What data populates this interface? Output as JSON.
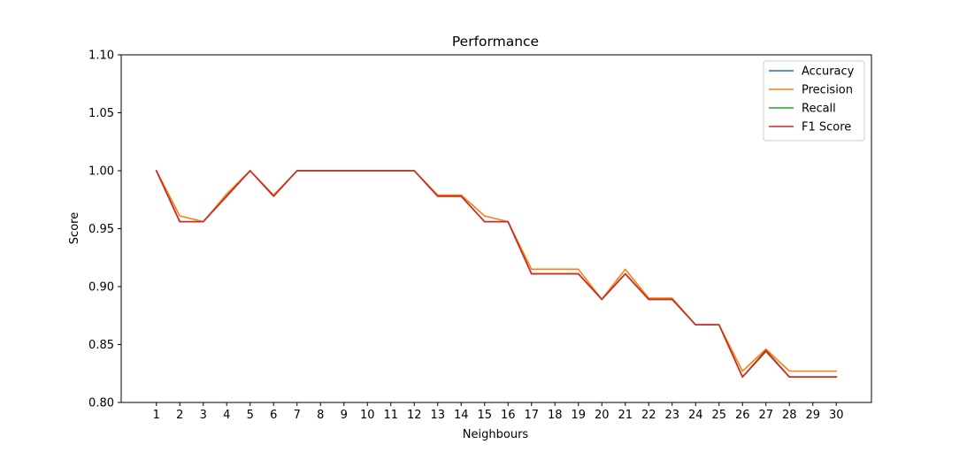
{
  "chart_data": {
    "type": "line",
    "title": "Performance",
    "xlabel": "Neighbours",
    "ylabel": "Score",
    "x": [
      1,
      2,
      3,
      4,
      5,
      6,
      7,
      8,
      9,
      10,
      11,
      12,
      13,
      14,
      15,
      16,
      17,
      18,
      19,
      20,
      21,
      22,
      23,
      24,
      25,
      26,
      27,
      28,
      29,
      30
    ],
    "x_tick_labels": [
      "1",
      "2",
      "3",
      "4",
      "5",
      "6",
      "7",
      "8",
      "9",
      "10",
      "11",
      "12",
      "13",
      "14",
      "15",
      "16",
      "17",
      "18",
      "19",
      "20",
      "21",
      "22",
      "23",
      "24",
      "25",
      "26",
      "27",
      "28",
      "29",
      "30"
    ],
    "xlim": [
      -0.5,
      31.5
    ],
    "ylim": [
      0.8,
      1.1
    ],
    "y_ticks": [
      0.8,
      0.85,
      0.9,
      0.95,
      1.0,
      1.05,
      1.1
    ],
    "y_tick_labels": [
      "0.80",
      "0.85",
      "0.90",
      "0.95",
      "1.00",
      "1.05",
      "1.10"
    ],
    "grid": false,
    "legend_position": "top-right",
    "series": [
      {
        "name": "Accuracy",
        "color": "#1f77b4",
        "values": [
          1.0,
          0.956,
          0.956,
          0.978,
          1.0,
          0.978,
          1.0,
          1.0,
          1.0,
          1.0,
          1.0,
          1.0,
          0.978,
          0.978,
          0.956,
          0.956,
          0.911,
          0.911,
          0.911,
          0.889,
          0.911,
          0.889,
          0.889,
          0.867,
          0.867,
          0.822,
          0.844,
          0.822,
          0.822,
          0.822
        ]
      },
      {
        "name": "Precision",
        "color": "#ff7f0e",
        "values": [
          1.0,
          0.961,
          0.956,
          0.98,
          1.0,
          0.979,
          1.0,
          1.0,
          1.0,
          1.0,
          1.0,
          1.0,
          0.979,
          0.979,
          0.961,
          0.956,
          0.915,
          0.915,
          0.915,
          0.889,
          0.915,
          0.89,
          0.89,
          0.867,
          0.867,
          0.827,
          0.846,
          0.827,
          0.827,
          0.827
        ]
      },
      {
        "name": "Recall",
        "color": "#2ca02c",
        "values": [
          1.0,
          0.956,
          0.956,
          0.978,
          1.0,
          0.978,
          1.0,
          1.0,
          1.0,
          1.0,
          1.0,
          1.0,
          0.978,
          0.978,
          0.956,
          0.956,
          0.911,
          0.911,
          0.911,
          0.889,
          0.911,
          0.889,
          0.889,
          0.867,
          0.867,
          0.822,
          0.844,
          0.822,
          0.822,
          0.822
        ]
      },
      {
        "name": "F1 Score",
        "color": "#d62728",
        "values": [
          1.0,
          0.956,
          0.956,
          0.978,
          1.0,
          0.978,
          1.0,
          1.0,
          1.0,
          1.0,
          1.0,
          1.0,
          0.978,
          0.978,
          0.956,
          0.956,
          0.911,
          0.911,
          0.911,
          0.889,
          0.911,
          0.889,
          0.889,
          0.867,
          0.867,
          0.822,
          0.845,
          0.822,
          0.822,
          0.822
        ]
      }
    ]
  }
}
